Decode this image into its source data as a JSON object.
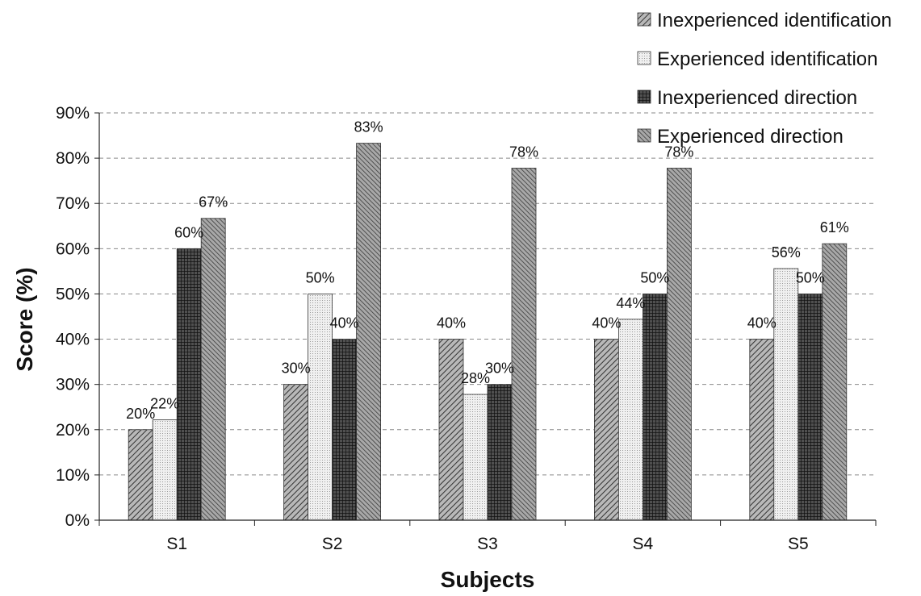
{
  "chart_data": {
    "type": "bar",
    "title": "",
    "xlabel": "Subjects",
    "ylabel": "Score (%)",
    "categories": [
      "S1",
      "S2",
      "S3",
      "S4",
      "S5"
    ],
    "ylim": [
      0,
      90
    ],
    "yticks": [
      0,
      10,
      20,
      30,
      40,
      50,
      60,
      70,
      80,
      90
    ],
    "ytick_labels": [
      "0%",
      "10%",
      "20%",
      "30%",
      "40%",
      "50%",
      "60%",
      "70%",
      "80%",
      "90%"
    ],
    "grid": true,
    "legend_position": "top-right",
    "series": [
      {
        "name": "Inexperienced identification",
        "values": [
          20,
          30,
          40,
          40,
          40
        ],
        "labels": [
          "20%",
          "30%",
          "40%",
          "40%",
          "40%"
        ],
        "color": "#8a8a8a",
        "pattern": "diagonal-hatch"
      },
      {
        "name": "Experienced identification",
        "values": [
          22.2,
          50,
          27.8,
          44.4,
          55.6
        ],
        "labels": [
          "22%",
          "50%",
          "28%",
          "44%",
          "56%"
        ],
        "color": "#e2e2e2",
        "pattern": "light-dots"
      },
      {
        "name": "Inexperienced direction",
        "values": [
          60,
          40,
          30,
          50,
          50
        ],
        "labels": [
          "60%",
          "40%",
          "30%",
          "50%",
          "50%"
        ],
        "color": "#2e2e2e",
        "pattern": "dark-crosshatch"
      },
      {
        "name": "Experienced direction",
        "values": [
          66.7,
          83.3,
          77.8,
          77.8,
          61.1
        ],
        "labels": [
          "67%",
          "83%",
          "78%",
          "78%",
          "61%"
        ],
        "color": "#7a7a7a",
        "pattern": "dense-diagonal"
      }
    ]
  }
}
